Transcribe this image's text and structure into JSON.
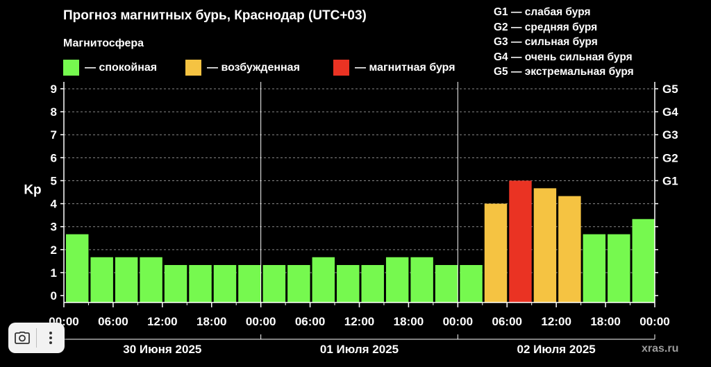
{
  "title": "Прогноз магнитных бурь, Краснодар (UTC+03)",
  "magnetosphere": {
    "title": "Магнитосфера",
    "items": [
      {
        "label": "— спокойная",
        "color": "#76f94f"
      },
      {
        "label": "— возбужденная",
        "color": "#f5c342"
      },
      {
        "label": "— магнитная буря",
        "color": "#ea3323"
      }
    ]
  },
  "storm_levels": [
    "G1 — слабая буря",
    "G2 — средняя буря",
    "G3 — сильная буря",
    "G4 — очень сильная буря",
    "G5 — экстремальная буря"
  ],
  "credit": "xras.ru",
  "toolbar": {
    "camera_icon": "camera-icon",
    "more_icon": "more-vertical-icon"
  },
  "chart_data": {
    "type": "bar",
    "ylabel": "Kp",
    "ylim": [
      -0.3,
      9.3
    ],
    "yticks": [
      0,
      1,
      2,
      3,
      4,
      5,
      6,
      7,
      8,
      9
    ],
    "right_ticks": [
      {
        "value": 5,
        "label": "G1"
      },
      {
        "value": 6,
        "label": "G2"
      },
      {
        "value": 7,
        "label": "G3"
      },
      {
        "value": 8,
        "label": "G4"
      },
      {
        "value": 9,
        "label": "G5"
      }
    ],
    "xtick_labels": [
      "00:00",
      "06:00",
      "12:00",
      "18:00",
      "00:00",
      "06:00",
      "12:00",
      "18:00",
      "00:00",
      "06:00",
      "12:00",
      "18:00",
      "00:00"
    ],
    "days": [
      "30 Июня 2025",
      "01 Июля 2025",
      "02 Июля 2025"
    ],
    "grid": true,
    "values": [
      2.67,
      1.67,
      1.67,
      1.67,
      1.33,
      1.33,
      1.33,
      1.33,
      1.33,
      1.33,
      1.67,
      1.33,
      1.33,
      1.67,
      1.67,
      1.33,
      1.33,
      4.0,
      5.0,
      4.67,
      4.33,
      2.67,
      2.67,
      3.33
    ],
    "colors": [
      "#76f94f",
      "#76f94f",
      "#76f94f",
      "#76f94f",
      "#76f94f",
      "#76f94f",
      "#76f94f",
      "#76f94f",
      "#76f94f",
      "#76f94f",
      "#76f94f",
      "#76f94f",
      "#76f94f",
      "#76f94f",
      "#76f94f",
      "#76f94f",
      "#76f94f",
      "#f5c342",
      "#ea3323",
      "#f5c342",
      "#f5c342",
      "#76f94f",
      "#76f94f",
      "#76f94f"
    ]
  }
}
